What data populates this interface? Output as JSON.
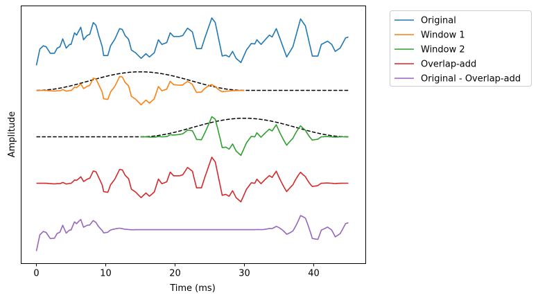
{
  "chart_data": {
    "type": "line",
    "title": "",
    "xlabel": "Time (ms)",
    "ylabel": "Amplitude",
    "xlim": [
      -2.2,
      47.5
    ],
    "ylim": [
      -0.73,
      4.82
    ],
    "xticks": [
      0,
      10,
      20,
      30,
      40
    ],
    "xtick_labels": [
      "0",
      "10",
      "20",
      "30",
      "40"
    ],
    "grid": false,
    "legend_placement": "outside-top-right",
    "windows": [
      {
        "name": "Window 1",
        "type": "hann",
        "start": 0,
        "end": 30,
        "display_scale": 0.4
      },
      {
        "name": "Window 2",
        "type": "hann",
        "start": 15,
        "end": 45,
        "display_scale": 0.4
      }
    ],
    "original_signal": {
      "t": [
        0,
        0.5,
        1,
        1.4,
        2,
        2.6,
        3,
        3.4,
        3.8,
        4.3,
        4.8,
        5,
        5.5,
        5.8,
        6.4,
        6.8,
        7.3,
        7.7,
        8.2,
        8.6,
        9,
        9.5,
        9.7,
        10.3,
        10.7,
        11.3,
        12,
        12.4,
        12.8,
        13.3,
        13.7,
        14.3,
        15.1,
        15.8,
        16.3,
        17,
        17.6,
        18.1,
        18.8,
        19.3,
        19.8,
        20.6,
        21.1,
        21.8,
        22.5,
        23.1,
        23.8,
        24.3,
        25.3,
        25.8,
        26.8,
        27.3,
        27.8,
        28.3,
        28.8,
        29.5,
        30.3,
        31,
        31.5,
        31.8,
        32.4,
        33,
        33.6,
        34,
        34.6,
        35.1,
        36.1,
        37,
        38.1,
        38.8,
        39.8,
        40.6,
        41.1,
        42,
        42.6,
        43.1,
        43.8,
        44.6,
        45
      ],
      "v": [
        -0.46,
        -0.11,
        -0.04,
        -0.06,
        -0.2,
        -0.2,
        -0.09,
        -0.06,
        0.11,
        -0.09,
        -0.01,
        -0.01,
        0.24,
        0.19,
        0.36,
        0.09,
        0.18,
        0.21,
        0.46,
        0.4,
        0.18,
        -0.06,
        -0.25,
        -0.25,
        -0.04,
        0.1,
        0.33,
        0.31,
        0.18,
        0.1,
        -0.13,
        -0.19,
        -0.31,
        -0.21,
        -0.28,
        -0.19,
        0.09,
        -0.01,
        0.03,
        0.24,
        0.16,
        0.16,
        0.18,
        0.34,
        0.26,
        -0.1,
        -0.1,
        0.13,
        0.56,
        0.46,
        -0.26,
        -0.24,
        -0.28,
        -0.16,
        -0.31,
        -0.4,
        -0.13,
        0.01,
        0,
        0.09,
        -0.01,
        0.09,
        0.19,
        0.15,
        0.33,
        0.13,
        -0.28,
        -0.06,
        0.54,
        0.39,
        -0.26,
        -0.26,
        -0.01,
        0.06,
        -0.01,
        -0.16,
        -0.09,
        0.13,
        0.15
      ]
    },
    "series": [
      {
        "name": "Original",
        "color": "#1f77b4",
        "offset": 4,
        "formula": "s"
      },
      {
        "name": "Window 1",
        "color": "#ff7f0e",
        "offset": 3,
        "formula": "s*w1"
      },
      {
        "name": "Window 2",
        "color": "#2ca02c",
        "offset": 2,
        "formula": "s*w2"
      },
      {
        "name": "Overlap-add",
        "color": "#d62728",
        "offset": 1,
        "formula": "s*(w1+w2)"
      },
      {
        "name": "Original - Overlap-add",
        "color": "#9467bd",
        "offset": 0,
        "formula": "s*(1-w1-w2)"
      }
    ]
  }
}
